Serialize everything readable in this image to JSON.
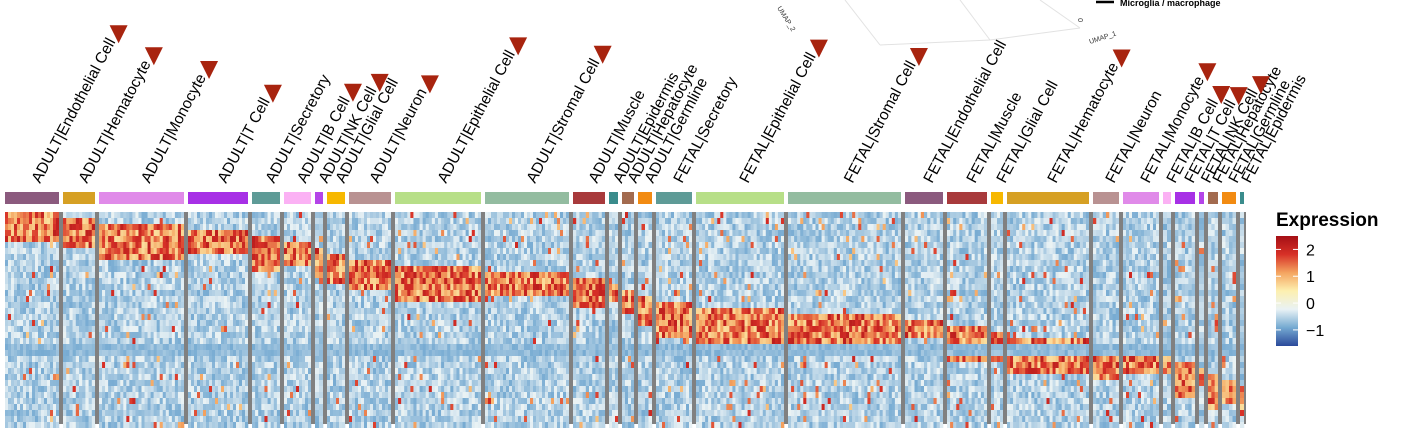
{
  "chart_data": {
    "type": "heatmap",
    "title": "",
    "xlabel": "",
    "ylabel": "",
    "colorbar": {
      "title": "Expression",
      "ticks": [
        2,
        1,
        0,
        -1
      ],
      "tick_labels": [
        "2",
        "1",
        "0",
        "−1"
      ],
      "range": [
        -1.6,
        2.5
      ],
      "colors": [
        "#2b4a9a",
        "#74a9d1",
        "#e9f2f5",
        "#fdf0b0",
        "#f4a460",
        "#d73027",
        "#a50f15"
      ]
    },
    "groups": [
      {
        "name": "ADULT|Endothelial Cell",
        "color": "#8b5a7e",
        "span": 54,
        "marked": true
      },
      {
        "name": "ADULT|Hematocyte",
        "color": "#d6a024",
        "span": 32,
        "marked": true
      },
      {
        "name": "ADULT|Monocyte",
        "color": "#e08ae9",
        "span": 85,
        "marked": true
      },
      {
        "name": "ADULT|T Cell",
        "color": "#a730e6",
        "span": 60,
        "marked": true
      },
      {
        "name": "ADULT|Secretory",
        "color": "#5e9b97",
        "span": 28,
        "marked": false
      },
      {
        "name": "ADULT|B Cell",
        "color": "#fbb1f4",
        "span": 27,
        "marked": true
      },
      {
        "name": "ADULT|NK Cell",
        "color": "#b444e8",
        "span": 8,
        "marked": true
      },
      {
        "name": "ADULT|Glial Cell",
        "color": "#f7b800",
        "span": 18,
        "marked": false
      },
      {
        "name": "ADULT|Neuron",
        "color": "#b99292",
        "span": 42,
        "marked": true
      },
      {
        "name": "ADULT|Epithelial Cell",
        "color": "#b7df88",
        "span": 86,
        "marked": true
      },
      {
        "name": "ADULT|Stromal Cell",
        "color": "#93bca0",
        "span": 84,
        "marked": true
      },
      {
        "name": "ADULT|Muscle",
        "color": "#a83a3c",
        "span": 32,
        "marked": false
      },
      {
        "name": "ADULT|Epidermis",
        "color": "#3a8c8c",
        "span": 9,
        "marked": false
      },
      {
        "name": "ADULT|Hepatocyte",
        "color": "#a36b4f",
        "span": 12,
        "marked": false
      },
      {
        "name": "ADULT|Germline",
        "color": "#f28b12",
        "span": 14,
        "marked": false
      },
      {
        "name": "FETAL|Secretory",
        "color": "#5e9b97",
        "span": 36,
        "marked": false
      },
      {
        "name": "FETAL|Epithelial Cell",
        "color": "#b7df88",
        "span": 88,
        "marked": true
      },
      {
        "name": "FETAL|Stromal Cell",
        "color": "#93bca0",
        "span": 113,
        "marked": true
      },
      {
        "name": "FETAL|Endothelial Cell",
        "color": "#8b5a7e",
        "span": 38,
        "marked": false
      },
      {
        "name": "FETAL|Muscle",
        "color": "#a83a3c",
        "span": 40,
        "marked": false
      },
      {
        "name": "FETAL|Glial Cell",
        "color": "#f7b800",
        "span": 12,
        "marked": false
      },
      {
        "name": "FETAL|Hematocyte",
        "color": "#d6a024",
        "span": 82,
        "marked": true
      },
      {
        "name": "FETAL|Neuron",
        "color": "#b99292",
        "span": 26,
        "marked": false
      },
      {
        "name": "FETAL|Monocyte",
        "color": "#e08ae9",
        "span": 36,
        "marked": true
      },
      {
        "name": "FETAL|B Cell",
        "color": "#fbb1f4",
        "span": 8,
        "marked": true
      },
      {
        "name": "FETAL|T Cell",
        "color": "#a730e6",
        "span": 20,
        "marked": true
      },
      {
        "name": "FETAL|NK Cell",
        "color": "#b444e8",
        "span": 5,
        "marked": true
      },
      {
        "name": "FETAL|Hepatocyte",
        "color": "#a36b4f",
        "span": 10,
        "marked": false
      },
      {
        "name": "FETAL|Germline",
        "color": "#f28b12",
        "span": 14,
        "marked": false
      },
      {
        "name": "FETAL|Epidermis",
        "color": "#3a8c8c",
        "span": 4,
        "marked": false
      }
    ],
    "marker_color": "#a8240f",
    "separator_color": "#808080",
    "umap_fragment": {
      "axis_x": "UMAP_1",
      "axis_y": "UMAP_2",
      "tick": "0",
      "legend_text": "Microglia / macrophage"
    }
  }
}
